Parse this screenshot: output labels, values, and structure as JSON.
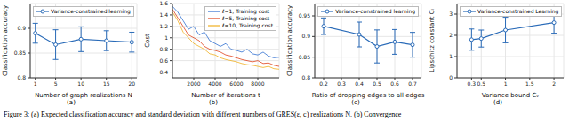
{
  "caption": "Figure 3: (a) Expected classification accuracy and standard deviation with different numbers of GRES(ε, c) realizations N. (b) Convergence",
  "chart_data": [
    {
      "type": "line",
      "panel": "(a)",
      "x_label": "Number of graph realizations N",
      "y_label": "Classification accuracy",
      "x": [
        1,
        5,
        10,
        15,
        20
      ],
      "xlim": [
        0,
        21
      ],
      "xticks": [
        1,
        5,
        10,
        15,
        20
      ],
      "ylim": [
        0.8,
        0.95
      ],
      "yticks": [
        0.8,
        0.85,
        0.9
      ],
      "legend": "upper left",
      "marker": "circle",
      "series": [
        {
          "name": "Variance-constrained learning",
          "color": "#2a6bb8",
          "values": [
            0.89,
            0.867,
            0.878,
            0.875,
            0.872
          ],
          "error": [
            0.02,
            0.03,
            0.025,
            0.02,
            0.02
          ]
        }
      ]
    },
    {
      "type": "line",
      "panel": "(b)",
      "x_label": "Number of iterations t",
      "y_label": "Cost",
      "x": [
        0,
        500,
        1000,
        1500,
        2000,
        2500,
        3000,
        3500,
        4000,
        4500,
        5000,
        5500,
        6000,
        6500,
        7000,
        7500,
        8000,
        8500,
        9000,
        9500,
        10000
      ],
      "xlim": [
        0,
        10000
      ],
      "xticks": [
        2000,
        4000,
        6000,
        8000
      ],
      "ylim": [
        0.3,
        1.6
      ],
      "yticks": [
        0.4,
        0.6,
        0.8,
        1,
        1.2,
        1.4,
        1.6
      ],
      "legend": "upper right",
      "series": [
        {
          "name": "ℓ=1, Training cost",
          "color": "#2f6fd0",
          "values": [
            1.55,
            1.45,
            1.3,
            1.15,
            1.2,
            1.05,
            1.1,
            0.95,
            0.9,
            0.85,
            0.9,
            0.8,
            0.78,
            0.75,
            0.8,
            0.72,
            0.7,
            0.75,
            0.68,
            0.65,
            0.66
          ]
        },
        {
          "name": "ℓ=5, Training cost",
          "color": "#e0421c",
          "values": [
            1.5,
            1.35,
            1.2,
            1.05,
            1.0,
            0.95,
            0.85,
            0.8,
            0.78,
            0.75,
            0.7,
            0.68,
            0.65,
            0.62,
            0.6,
            0.58,
            0.6,
            0.55,
            0.56,
            0.52,
            0.5
          ]
        },
        {
          "name": "ℓ=10, Training cost",
          "color": "#f0b020",
          "values": [
            1.45,
            1.3,
            1.1,
            1.0,
            0.9,
            0.85,
            0.8,
            0.72,
            0.7,
            0.65,
            0.62,
            0.6,
            0.58,
            0.55,
            0.53,
            0.52,
            0.5,
            0.48,
            0.5,
            0.46,
            0.45
          ]
        }
      ]
    },
    {
      "type": "line",
      "panel": "(c)",
      "x_label": "Ratio of dropping edges to all edges",
      "y_label": "Classification accuracy",
      "x": [
        0.2,
        0.4,
        0.5,
        0.6,
        0.7
      ],
      "xlim": [
        0.15,
        0.75
      ],
      "xticks": [
        0.2,
        0.3,
        0.4,
        0.5,
        0.6,
        0.7
      ],
      "ylim": [
        0.8,
        0.98
      ],
      "yticks": [
        0.8,
        0.85,
        0.9,
        0.95
      ],
      "legend": "upper right",
      "marker": "circle",
      "series": [
        {
          "name": "Variance-constrained learning",
          "color": "#2a6bb8",
          "values": [
            0.925,
            0.905,
            0.876,
            0.887,
            0.88
          ],
          "error": [
            0.02,
            0.03,
            0.04,
            0.03,
            0.03
          ]
        }
      ]
    },
    {
      "type": "line",
      "panel": "(d)",
      "x_label": "Variance bound Cᵥ",
      "y_label": "Lipschitz constant Cₗ",
      "x": [
        0.3,
        0.5,
        1,
        2
      ],
      "xlim": [
        0,
        2.2
      ],
      "xticks": [
        0.3,
        0.5,
        1,
        1.5,
        2
      ],
      "ylim": [
        0,
        3.5
      ],
      "yticks": [
        0,
        1,
        2,
        3
      ],
      "legend": "upper left",
      "marker": "circle",
      "series": [
        {
          "name": "Variance-constrained Learning",
          "color": "#2a6bb8",
          "values": [
            1.8,
            1.85,
            2.25,
            2.6
          ],
          "error": [
            0.5,
            0.4,
            0.6,
            0.5
          ]
        }
      ]
    }
  ]
}
